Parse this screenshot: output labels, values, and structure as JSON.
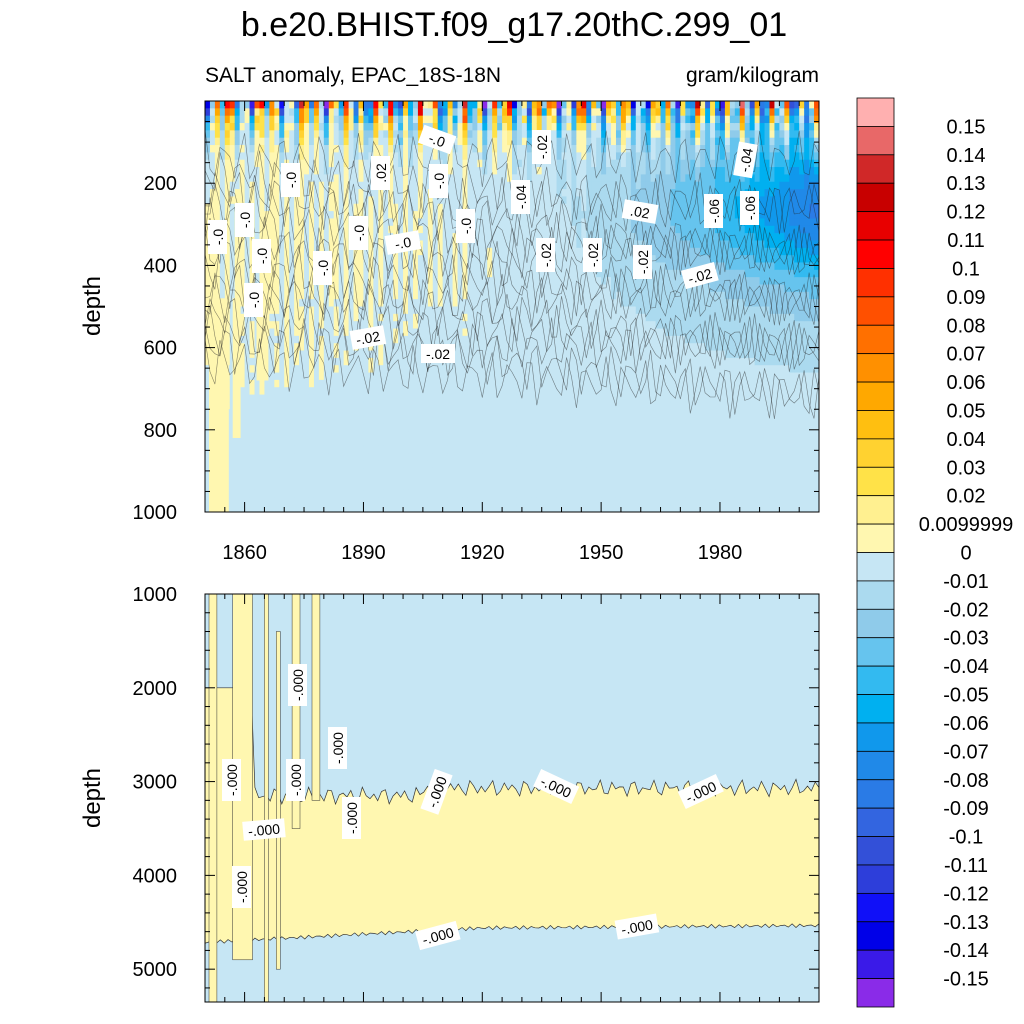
{
  "chart_data": {
    "type": "heatmap",
    "title": "b.e20.BHIST.f09_g17.20thC.299_01",
    "subtitle_left": "SALT anomaly, EPAC_18S-18N",
    "subtitle_right": "gram/kilogram",
    "x_axis": {
      "range": [
        1850,
        2005
      ],
      "ticks": [
        "1860",
        "1890",
        "1920",
        "1950",
        "1980"
      ]
    },
    "panels": [
      {
        "name": "upper",
        "ylabel": "depth",
        "depth_range": [
          0,
          1000
        ],
        "y_ticks": [
          "200",
          "400",
          "600",
          "800",
          "1000"
        ],
        "contour_labels": [
          "-.0",
          "-.0",
          "-.0",
          "-.0",
          "-.0",
          "-.0",
          ".02",
          "-.0",
          "-.0",
          "-.0",
          "-.0",
          "-.0",
          "-.02",
          "-.02",
          ".02",
          "-.04",
          "-.02",
          "-.02",
          "-.02",
          "-.02",
          "-.04",
          "-.06",
          "-.06",
          "-.02"
        ]
      },
      {
        "name": "lower",
        "ylabel": "depth",
        "depth_range": [
          1000,
          5350
        ],
        "y_ticks": [
          "1000",
          "2000",
          "3000",
          "4000",
          "5000"
        ],
        "contour_labels": [
          "-.000",
          "-.000",
          "-.000",
          "-.000",
          "-.000",
          "-.000",
          "-.000",
          "-.000",
          "-.000",
          "-.000",
          "-.000",
          "-.000"
        ]
      }
    ],
    "colorbar": {
      "labels": [
        "0.15",
        "0.14",
        "0.13",
        "0.12",
        "0.11",
        "0.1",
        "0.09",
        "0.08",
        "0.07",
        "0.06",
        "0.05",
        "0.04",
        "0.03",
        "0.02",
        "0.0099999",
        "0",
        "-0.01",
        "-0.02",
        "-0.03",
        "-0.04",
        "-0.05",
        "-0.06",
        "-0.07",
        "-0.08",
        "-0.09",
        "-0.1",
        "-0.11",
        "-0.12",
        "-0.13",
        "-0.14",
        "-0.15"
      ],
      "colors": [
        "#FFB0B0",
        "#E86868",
        "#D02828",
        "#C80000",
        "#E80000",
        "#FF0000",
        "#FF3000",
        "#FF5000",
        "#FF7000",
        "#FF9000",
        "#FFA800",
        "#FFBF10",
        "#FFD230",
        "#FFE248",
        "#FFF090",
        "#FFF7B0",
        "#C6E6F4",
        "#ABDAEF",
        "#8FCBEA",
        "#66C4EE",
        "#33BAF0",
        "#00B0F0",
        "#1098EC",
        "#2089E8",
        "#2A7BE6",
        "#3365E0",
        "#3350D8",
        "#2D3EDA",
        "#1010F8",
        "#0000E8",
        "#3A1AE8",
        "#8A2BE8"
      ]
    }
  }
}
